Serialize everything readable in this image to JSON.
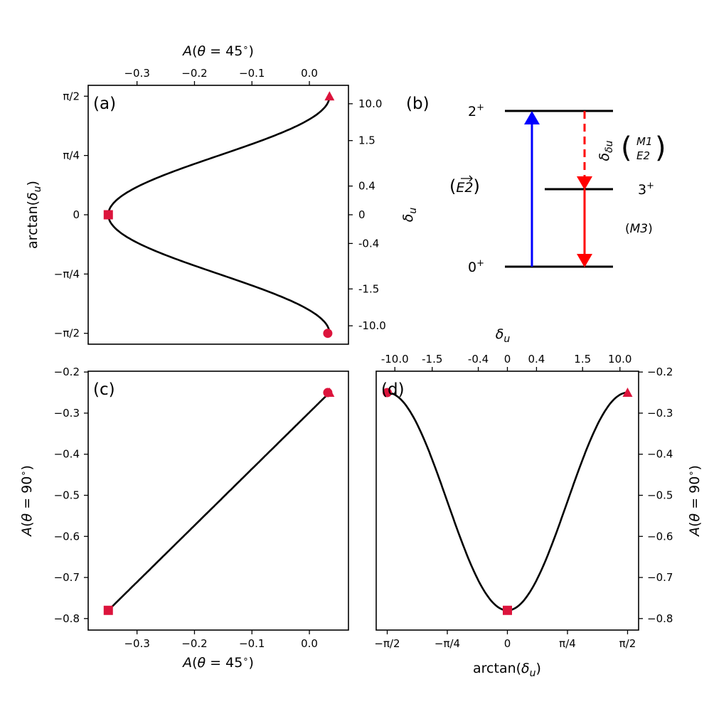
{
  "colors": {
    "curve": "#000000",
    "marker": "#dc143c",
    "excite": "#0000ff",
    "decay": "#ff0000"
  },
  "chart_data": [
    {
      "panel": "(a)",
      "type": "line",
      "xlabel": "A(θ = 45°)",
      "ylabel": "arctan(δu)",
      "right_ylabel": "δu",
      "xlim": [
        -0.385,
        0.068
      ],
      "ylim": [
        -1.715,
        1.715
      ],
      "x_ticks": [
        -0.3,
        -0.2,
        -0.1,
        0.0
      ],
      "x_ticklabels": [
        "−0.3",
        "−0.2",
        "−0.1",
        "0.0"
      ],
      "y_ticks": [
        -1.5708,
        -0.7854,
        0,
        0.7854,
        1.5708
      ],
      "y_ticklabels": [
        "−π/2",
        "−π/4",
        "0",
        "π/4",
        "π/2"
      ],
      "right_y_ticks": [
        -1.4711,
        -0.9828,
        -0.3805,
        0,
        0.3805,
        0.9828,
        1.4711
      ],
      "right_y_ticklabels": [
        "-10.0",
        "-1.5",
        "-0.4",
        "0",
        "0.4",
        "1.5",
        "10.0"
      ],
      "markers": [
        {
          "shape": "triangle",
          "x": 0.035,
          "y": 1.5708
        },
        {
          "shape": "square",
          "x": -0.35,
          "y": 0
        },
        {
          "shape": "circle",
          "x": 0.032,
          "y": -1.5708
        }
      ]
    },
    {
      "panel": "(b)",
      "type": "level-scheme",
      "levels": [
        {
          "label": "2",
          "sup": "+"
        },
        {
          "label": "3",
          "sup": "+"
        },
        {
          "label": "0",
          "sup": "+"
        }
      ],
      "excitation_label": "E2",
      "mixing_label": "δu",
      "mixed_multipoles": [
        "M1",
        "E2"
      ],
      "pure_multipole": "M3"
    },
    {
      "panel": "(c)",
      "type": "line",
      "xlabel": "A(θ = 45°)",
      "ylabel": "A(θ = 90°)",
      "xlim": [
        -0.385,
        0.068
      ],
      "ylim": [
        -0.828,
        -0.198
      ],
      "x_ticks": [
        -0.3,
        -0.2,
        -0.1,
        0.0
      ],
      "x_ticklabels": [
        "−0.3",
        "−0.2",
        "−0.1",
        "0.0"
      ],
      "y_ticks": [
        -0.8,
        -0.7,
        -0.6,
        -0.5,
        -0.4,
        -0.3,
        -0.2
      ],
      "y_ticklabels": [
        "−0.8",
        "−0.7",
        "−0.6",
        "−0.5",
        "−0.4",
        "−0.3",
        "−0.2"
      ],
      "markers": [
        {
          "shape": "circle",
          "x": 0.032,
          "y": -0.25
        },
        {
          "shape": "triangle",
          "x": 0.035,
          "y": -0.25
        },
        {
          "shape": "square",
          "x": -0.35,
          "y": -0.78
        }
      ]
    },
    {
      "panel": "(d)",
      "type": "line",
      "xlabel": "arctan(δu)",
      "ylabel": "A(θ = 90°)",
      "top_xlabel": "δu",
      "xlim": [
        -1.715,
        1.715
      ],
      "ylim": [
        -0.828,
        -0.198
      ],
      "x_ticks": [
        -1.5708,
        -0.7854,
        0,
        0.7854,
        1.5708
      ],
      "x_ticklabels": [
        "−π/2",
        "−π/4",
        "0",
        "π/4",
        "π/2"
      ],
      "top_x_ticks": [
        -1.4711,
        -0.9828,
        -0.3805,
        0,
        0.3805,
        0.9828,
        1.4711
      ],
      "top_x_ticklabels": [
        "-10.0",
        "-1.5",
        "-0.4",
        "0",
        "0.4",
        "1.5",
        "10.0"
      ],
      "y_ticks": [
        -0.8,
        -0.7,
        -0.6,
        -0.5,
        -0.4,
        -0.3,
        -0.2
      ],
      "y_ticklabels": [
        "−0.8",
        "−0.7",
        "−0.6",
        "−0.5",
        "−0.4",
        "−0.3",
        "−0.2"
      ],
      "markers": [
        {
          "shape": "circle",
          "x": -1.5708,
          "y": -0.25
        },
        {
          "shape": "square",
          "x": 0,
          "y": -0.78
        },
        {
          "shape": "triangle",
          "x": 1.5708,
          "y": -0.25
        }
      ]
    }
  ]
}
